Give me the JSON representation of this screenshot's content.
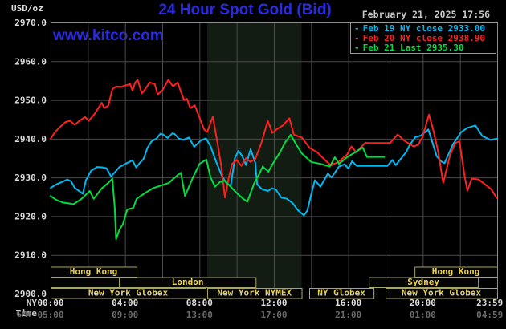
{
  "header": {
    "unit_label": "USD/oz",
    "title": "24 Hour Spot Gold (Bid)",
    "site_url": "www.kitco.com",
    "datetime": "February 21, 2025 17:56"
  },
  "legend": {
    "items": [
      {
        "label": "Feb 19 NY close",
        "value": "2933.00",
        "color": "#00b8f2"
      },
      {
        "label": "Feb 20 NY close",
        "value": "2938.90",
        "color": "#ff2020"
      },
      {
        "label": "Feb 21 Last",
        "value": "2935.30",
        "color": "#00dd41"
      }
    ]
  },
  "axis_captions": {
    "row1": "NY Time",
    "row2": "GMT"
  },
  "chart_data": {
    "type": "line",
    "title": "24 Hour Spot Gold (Bid)",
    "ylabel": "USD/oz",
    "y_axis": {
      "min": 2900,
      "max": 2970,
      "tick_step": 10,
      "grid": true
    },
    "x_axis": {
      "min_hours": 0,
      "max_hours": 24,
      "gridline_every_hours": 2,
      "ticks": [
        {
          "t": 0,
          "ny": "00:00",
          "gmt": "05:00"
        },
        {
          "t": 4,
          "ny": "04:00",
          "gmt": "09:00"
        },
        {
          "t": 8,
          "ny": "08:00",
          "gmt": "13:00"
        },
        {
          "t": 12,
          "ny": "12:00",
          "gmt": "17:00"
        },
        {
          "t": 16,
          "ny": "16:00",
          "gmt": "21:00"
        },
        {
          "t": 20,
          "ny": "20:00",
          "gmt": "01:00"
        },
        {
          "t": 23.6,
          "ny": "23:59",
          "gmt": "04:59"
        }
      ]
    },
    "shaded_session_hours": {
      "start": 8.42,
      "end": 13.49,
      "color": "#121c12"
    },
    "sessions": [
      {
        "row": 1,
        "label": "Hong Kong",
        "start": 0,
        "end": 4.62
      },
      {
        "row": 1,
        "label": "Hong Kong",
        "start": 19.56,
        "end": 24
      },
      {
        "row": 2,
        "label": "",
        "start": 0,
        "end": 3.67
      },
      {
        "row": 2,
        "label": "London",
        "start": 3.71,
        "end": 11.02
      },
      {
        "row": 2,
        "label": "Sydney",
        "start": 17.1,
        "end": 22.97
      },
      {
        "row": 3,
        "label": "New York Globex",
        "start": 0,
        "end": 8.33
      },
      {
        "row": 3,
        "label": "New York NYMEX",
        "start": 8.42,
        "end": 13.49
      },
      {
        "row": 3,
        "label": "NY Globex",
        "start": 13.9,
        "end": 17.36
      },
      {
        "row": 3,
        "label": "New York Globex",
        "start": 18.0,
        "end": 24
      }
    ],
    "series": [
      {
        "name": "Feb 19",
        "color": "#00b8f2",
        "points": [
          [
            0.0,
            2927.3
          ],
          [
            0.3,
            2928.2
          ],
          [
            0.6,
            2928.8
          ],
          [
            0.9,
            2929.5
          ],
          [
            1.1,
            2929.0
          ],
          [
            1.3,
            2927.3
          ],
          [
            1.5,
            2926.6
          ],
          [
            1.73,
            2925.8
          ],
          [
            1.9,
            2929.3
          ],
          [
            2.17,
            2931.7
          ],
          [
            2.5,
            2932.7
          ],
          [
            2.8,
            2932.6
          ],
          [
            3.0,
            2932.4
          ],
          [
            3.25,
            2930.3
          ],
          [
            3.5,
            2931.6
          ],
          [
            3.7,
            2932.7
          ],
          [
            4.1,
            2933.7
          ],
          [
            4.4,
            2934.4
          ],
          [
            4.6,
            2932.6
          ],
          [
            4.8,
            2933.8
          ],
          [
            5.0,
            2934.8
          ],
          [
            5.2,
            2937.6
          ],
          [
            5.42,
            2939.3
          ],
          [
            5.7,
            2940.1
          ],
          [
            5.9,
            2941.3
          ],
          [
            6.07,
            2941.0
          ],
          [
            6.3,
            2940.2
          ],
          [
            6.55,
            2941.4
          ],
          [
            6.67,
            2941.2
          ],
          [
            6.9,
            2940.0
          ],
          [
            7.13,
            2939.7
          ],
          [
            7.43,
            2940.3
          ],
          [
            7.72,
            2937.9
          ],
          [
            7.93,
            2938.9
          ],
          [
            8.1,
            2939.6
          ],
          [
            8.35,
            2940.1
          ],
          [
            8.6,
            2938.0
          ],
          [
            8.9,
            2934.0
          ],
          [
            9.2,
            2930.5
          ],
          [
            9.45,
            2928.5
          ],
          [
            9.68,
            2927.9
          ],
          [
            9.9,
            2935.0
          ],
          [
            10.1,
            2936.9
          ],
          [
            10.3,
            2935.5
          ],
          [
            10.5,
            2933.2
          ],
          [
            10.75,
            2937.3
          ],
          [
            11.0,
            2933.8
          ],
          [
            11.1,
            2928.3
          ],
          [
            11.35,
            2927.0
          ],
          [
            11.67,
            2926.5
          ],
          [
            11.9,
            2927.2
          ],
          [
            12.1,
            2926.9
          ],
          [
            12.4,
            2924.8
          ],
          [
            12.7,
            2924.5
          ],
          [
            13.0,
            2923.4
          ],
          [
            13.3,
            2921.5
          ],
          [
            13.62,
            2920.2
          ],
          [
            13.8,
            2921.5
          ],
          [
            14.0,
            2925.5
          ],
          [
            14.2,
            2929.3
          ],
          [
            14.5,
            2927.6
          ],
          [
            14.9,
            2931.0
          ],
          [
            15.1,
            2930.0
          ],
          [
            15.5,
            2932.8
          ],
          [
            15.8,
            2933.4
          ],
          [
            16.0,
            2932.3
          ],
          [
            16.2,
            2934.2
          ],
          [
            16.45,
            2933.0
          ],
          [
            17.0,
            2933.0
          ],
          [
            18.1,
            2933.0
          ],
          [
            18.37,
            2934.5
          ],
          [
            18.55,
            2933.2
          ],
          [
            19.1,
            2936.5
          ],
          [
            19.3,
            2938.4
          ],
          [
            19.6,
            2940.4
          ],
          [
            19.9,
            2940.8
          ],
          [
            20.3,
            2942.4
          ],
          [
            20.75,
            2935.5
          ],
          [
            21.0,
            2934.1
          ],
          [
            21.17,
            2933.7
          ],
          [
            21.63,
            2938.6
          ],
          [
            22.07,
            2941.7
          ],
          [
            22.4,
            2942.8
          ],
          [
            22.83,
            2943.4
          ],
          [
            23.2,
            2940.7
          ],
          [
            23.63,
            2939.7
          ],
          [
            23.98,
            2940.0
          ]
        ]
      },
      {
        "name": "Feb 20",
        "color": "#ff2020",
        "points": [
          [
            0.0,
            2940.0
          ],
          [
            0.25,
            2941.8
          ],
          [
            0.5,
            2943.0
          ],
          [
            0.8,
            2944.3
          ],
          [
            1.05,
            2944.6
          ],
          [
            1.3,
            2943.6
          ],
          [
            1.6,
            2944.8
          ],
          [
            1.85,
            2945.6
          ],
          [
            2.05,
            2944.6
          ],
          [
            2.38,
            2946.5
          ],
          [
            2.75,
            2949.3
          ],
          [
            2.88,
            2947.9
          ],
          [
            3.1,
            2948.5
          ],
          [
            3.32,
            2952.8
          ],
          [
            3.53,
            2953.5
          ],
          [
            3.8,
            2953.4
          ],
          [
            4.0,
            2953.7
          ],
          [
            4.27,
            2954.1
          ],
          [
            4.4,
            2952.4
          ],
          [
            4.55,
            2954.5
          ],
          [
            4.68,
            2955.2
          ],
          [
            4.9,
            2951.7
          ],
          [
            5.03,
            2952.4
          ],
          [
            5.33,
            2954.5
          ],
          [
            5.6,
            2954.1
          ],
          [
            5.75,
            2951.4
          ],
          [
            6.0,
            2952.4
          ],
          [
            6.33,
            2955.2
          ],
          [
            6.58,
            2953.5
          ],
          [
            6.83,
            2954.5
          ],
          [
            7.0,
            2952.1
          ],
          [
            7.17,
            2950.0
          ],
          [
            7.33,
            2950.3
          ],
          [
            7.5,
            2947.9
          ],
          [
            7.75,
            2948.6
          ],
          [
            8.0,
            2945.5
          ],
          [
            8.25,
            2942.4
          ],
          [
            8.42,
            2941.7
          ],
          [
            8.72,
            2945.7
          ],
          [
            9.0,
            2938.0
          ],
          [
            9.17,
            2933.0
          ],
          [
            9.37,
            2924.8
          ],
          [
            9.58,
            2930.0
          ],
          [
            9.75,
            2933.5
          ],
          [
            10.0,
            2934.5
          ],
          [
            10.25,
            2933.0
          ],
          [
            10.5,
            2935.0
          ],
          [
            10.75,
            2934.0
          ],
          [
            11.0,
            2934.8
          ],
          [
            11.3,
            2938.5
          ],
          [
            11.67,
            2944.6
          ],
          [
            11.92,
            2941.5
          ],
          [
            12.17,
            2942.5
          ],
          [
            12.5,
            2943.5
          ],
          [
            12.83,
            2945.3
          ],
          [
            13.08,
            2941.0
          ],
          [
            13.5,
            2940.3
          ],
          [
            13.92,
            2937.6
          ],
          [
            14.33,
            2936.5
          ],
          [
            14.83,
            2934.1
          ],
          [
            15.07,
            2933.1
          ],
          [
            15.5,
            2934.1
          ],
          [
            15.93,
            2935.9
          ],
          [
            16.17,
            2938.0
          ],
          [
            16.42,
            2936.5
          ],
          [
            16.92,
            2939.0
          ],
          [
            17.0,
            2938.9
          ],
          [
            18.25,
            2938.9
          ],
          [
            18.65,
            2941.1
          ],
          [
            19.0,
            2939.5
          ],
          [
            19.5,
            2938.0
          ],
          [
            19.75,
            2938.4
          ],
          [
            20.0,
            2940.5
          ],
          [
            20.33,
            2946.2
          ],
          [
            20.58,
            2942.0
          ],
          [
            20.83,
            2936.5
          ],
          [
            21.1,
            2928.6
          ],
          [
            21.47,
            2935.8
          ],
          [
            21.75,
            2938.9
          ],
          [
            21.97,
            2939.3
          ],
          [
            22.25,
            2930.3
          ],
          [
            22.4,
            2926.6
          ],
          [
            22.63,
            2929.7
          ],
          [
            23.0,
            2929.5
          ],
          [
            23.33,
            2928.3
          ],
          [
            23.67,
            2927.0
          ],
          [
            23.98,
            2924.7
          ]
        ]
      },
      {
        "name": "Feb 21",
        "color": "#00dd41",
        "points": [
          [
            0.0,
            2925.2
          ],
          [
            0.3,
            2924.2
          ],
          [
            0.67,
            2923.5
          ],
          [
            1.0,
            2923.3
          ],
          [
            1.23,
            2923.1
          ],
          [
            1.67,
            2924.5
          ],
          [
            2.1,
            2926.5
          ],
          [
            2.32,
            2924.5
          ],
          [
            2.75,
            2927.2
          ],
          [
            3.1,
            2928.6
          ],
          [
            3.32,
            2929.7
          ],
          [
            3.45,
            2922.0
          ],
          [
            3.52,
            2914.1
          ],
          [
            3.7,
            2916.5
          ],
          [
            3.88,
            2917.9
          ],
          [
            4.12,
            2921.7
          ],
          [
            4.45,
            2922.2
          ],
          [
            4.62,
            2924.5
          ],
          [
            5.05,
            2925.9
          ],
          [
            5.48,
            2927.2
          ],
          [
            5.92,
            2927.9
          ],
          [
            6.35,
            2928.6
          ],
          [
            6.8,
            2930.5
          ],
          [
            7.0,
            2931.2
          ],
          [
            7.22,
            2925.2
          ],
          [
            7.65,
            2930.0
          ],
          [
            7.85,
            2932.0
          ],
          [
            8.0,
            2933.5
          ],
          [
            8.37,
            2934.6
          ],
          [
            8.6,
            2930.0
          ],
          [
            8.83,
            2927.6
          ],
          [
            9.1,
            2928.8
          ],
          [
            9.35,
            2929.2
          ],
          [
            9.7,
            2927.5
          ],
          [
            10.0,
            2926.0
          ],
          [
            10.35,
            2924.5
          ],
          [
            10.57,
            2923.7
          ],
          [
            10.95,
            2928.6
          ],
          [
            11.2,
            2930.8
          ],
          [
            11.4,
            2932.8
          ],
          [
            11.7,
            2931.5
          ],
          [
            12.0,
            2934.0
          ],
          [
            12.33,
            2936.5
          ],
          [
            12.6,
            2939.0
          ],
          [
            12.9,
            2941.0
          ],
          [
            13.2,
            2938.5
          ],
          [
            13.5,
            2936.2
          ],
          [
            14.0,
            2934.0
          ],
          [
            14.5,
            2933.5
          ],
          [
            15.0,
            2932.8
          ],
          [
            15.28,
            2935.2
          ],
          [
            15.5,
            2933.5
          ],
          [
            15.93,
            2935.2
          ],
          [
            16.5,
            2936.9
          ],
          [
            16.78,
            2937.7
          ],
          [
            17.0,
            2935.3
          ],
          [
            17.93,
            2935.3
          ]
        ]
      }
    ]
  },
  "colors": {
    "background": "#000000",
    "frame": "#8c8c8c",
    "grid": "#4a4a4a",
    "title_blue": "#2a2ae0",
    "session_border": "#a6a665",
    "session_text": "#ecd24f",
    "axis_text": "#dedede",
    "gmt_text": "#6a6a6a"
  }
}
